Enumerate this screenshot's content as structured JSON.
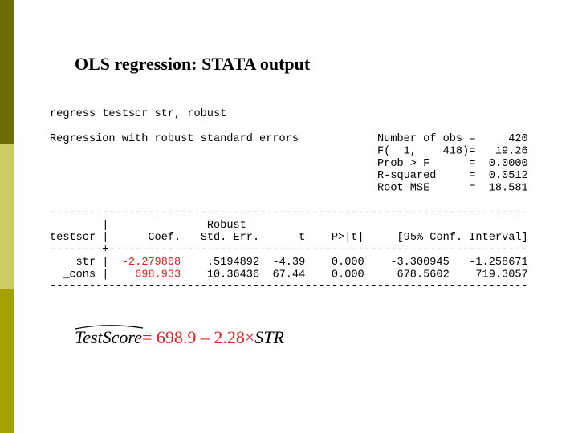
{
  "header": {
    "title": "OLS regression:  STATA output"
  },
  "output": {
    "command": "regress testscr str, robust",
    "model": "Regression with robust standard errors",
    "stats": [
      {
        "label": "Number of obs",
        "eq": "=",
        "value": "420"
      },
      {
        "label": "F(  1,    418)",
        "eq": "=",
        "value": "19.26"
      },
      {
        "label": "Prob > F",
        "eq": "=",
        "value": "0.0000"
      },
      {
        "label": "R-squared",
        "eq": "=",
        "value": "0.0512"
      },
      {
        "label": "Root MSE",
        "eq": "=",
        "value": "18.581"
      }
    ],
    "rule": "-------------------------------------------------------------------------",
    "separator": "--------+----------------------------------------------------------------",
    "pipe": "|",
    "robust": "Robust",
    "depvar": "testscr",
    "columns": [
      "Coef.",
      "Std. Err.",
      "t",
      "P>|t|",
      "[95% Conf. Interval]"
    ],
    "rows": [
      {
        "name": "str",
        "cells": [
          "-2.279808",
          ".5194892",
          "-4.39",
          "0.000",
          "-3.300945",
          "-1.258671"
        ]
      },
      {
        "name": "_cons",
        "cells": [
          "698.933",
          "10.36436",
          "67.44",
          "0.000",
          "678.5602",
          "719.3057"
        ]
      }
    ]
  },
  "equation": {
    "lhs": "TestScore",
    "rhs": "= 698.9 – 2.28×",
    "var": "STR"
  }
}
